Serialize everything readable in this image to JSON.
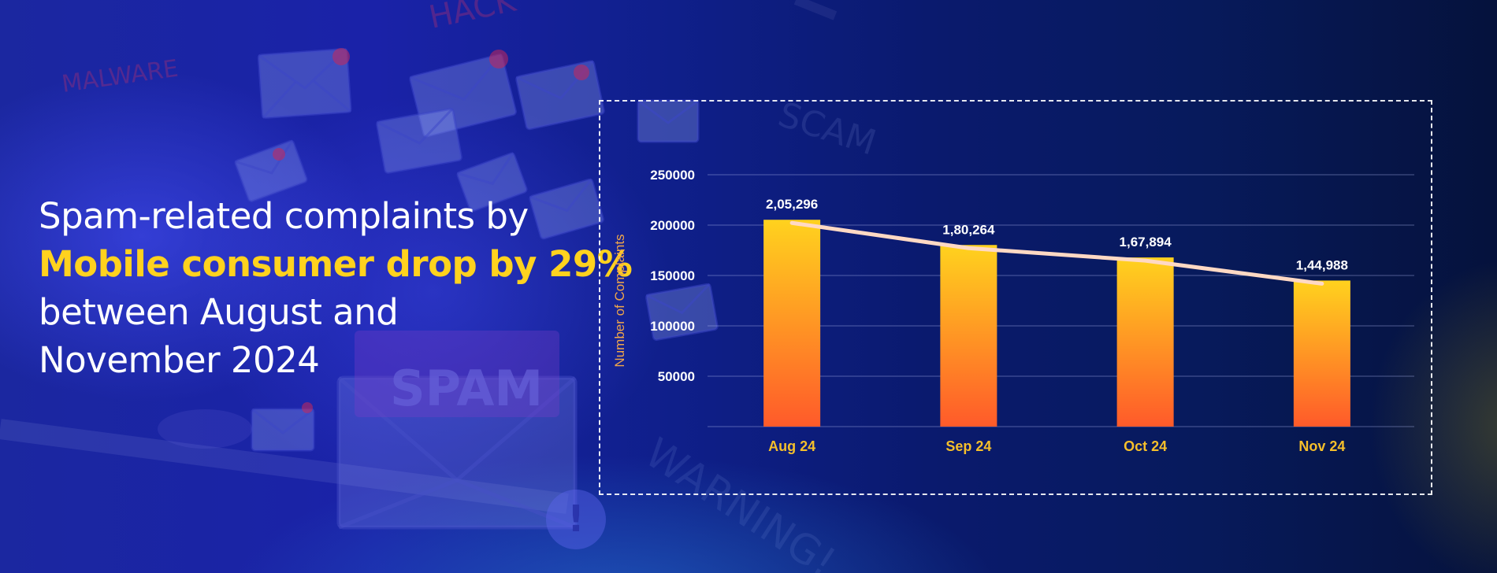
{
  "headline": {
    "line1": "Spam-related complaints by",
    "line2": "Mobile consumer drop by 29%",
    "line3": "between August and",
    "line4": "November 2024"
  },
  "background_words": {
    "malware": "MALWARE",
    "hack": "HACK",
    "spam": "SPAM",
    "scam": "SCAM",
    "warning": "WARNING!"
  },
  "colors": {
    "accent": "#ffd21e",
    "bar_top": "#ffd21e",
    "bar_bottom": "#ff5a2a",
    "trend_line": "#ffd9c4",
    "category_label": "#f5bf2b",
    "ylabel": "#f0a64a"
  },
  "chart_data": {
    "type": "bar",
    "title": "",
    "xlabel": "",
    "ylabel": "Number of Complaints",
    "categories": [
      "Aug 24",
      "Sep 24",
      "Oct 24",
      "Nov 24"
    ],
    "values": [
      205296,
      180264,
      167894,
      144988
    ],
    "value_labels": [
      "2,05,296",
      "1,80,264",
      "1,67,894",
      "1,44,988"
    ],
    "yticks": [
      "50000",
      "100000",
      "150000",
      "200000",
      "250000"
    ],
    "ylim": [
      0,
      250000
    ],
    "grid": true,
    "legend": "none",
    "trend_line": true
  }
}
